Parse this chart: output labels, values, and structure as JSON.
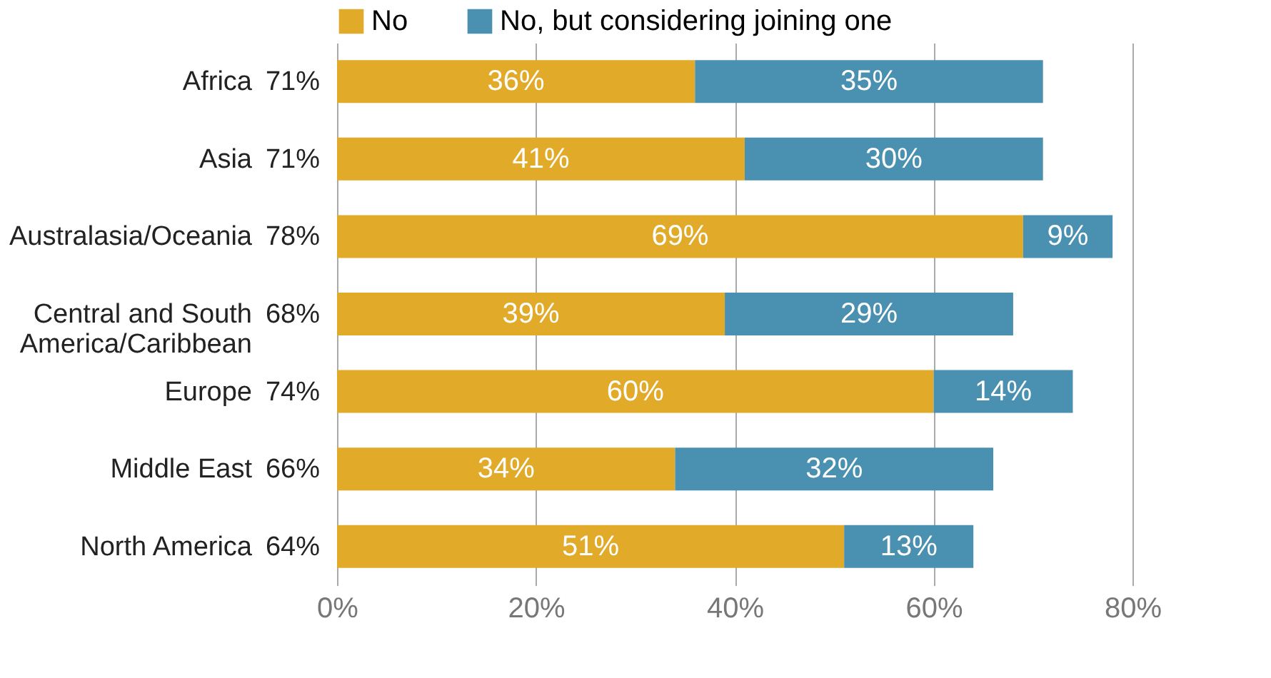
{
  "chart_data": {
    "type": "bar",
    "orientation": "horizontal",
    "stacked": true,
    "categories": [
      "Africa",
      "Asia",
      "Australasia/Oceania",
      "Central and South\nAmerica/Caribbean",
      "Europe",
      "Middle East",
      "North America"
    ],
    "series": [
      {
        "name": "No",
        "color": "#e1aa28",
        "values": [
          36,
          41,
          69,
          39,
          60,
          34,
          51
        ],
        "value_labels": [
          "36%",
          "41%",
          "69%",
          "39%",
          "60%",
          "34%",
          "51%"
        ]
      },
      {
        "name": "No, but considering joining one",
        "color": "#4a90b0",
        "values": [
          35,
          30,
          9,
          29,
          14,
          32,
          13
        ],
        "value_labels": [
          "35%",
          "30%",
          "9%",
          "29%",
          "14%",
          "32%",
          "13%"
        ]
      }
    ],
    "totals": [
      "71%",
      "71%",
      "78%",
      "68%",
      "74%",
      "66%",
      "64%"
    ],
    "xlim": [
      0,
      80
    ],
    "xticks": [
      {
        "value": 0,
        "label": "0%"
      },
      {
        "value": 20,
        "label": "20%"
      },
      {
        "value": 40,
        "label": "40%"
      },
      {
        "value": 60,
        "label": "60%"
      },
      {
        "value": 80,
        "label": "80%"
      }
    ],
    "grid": "x",
    "legend": "top"
  }
}
